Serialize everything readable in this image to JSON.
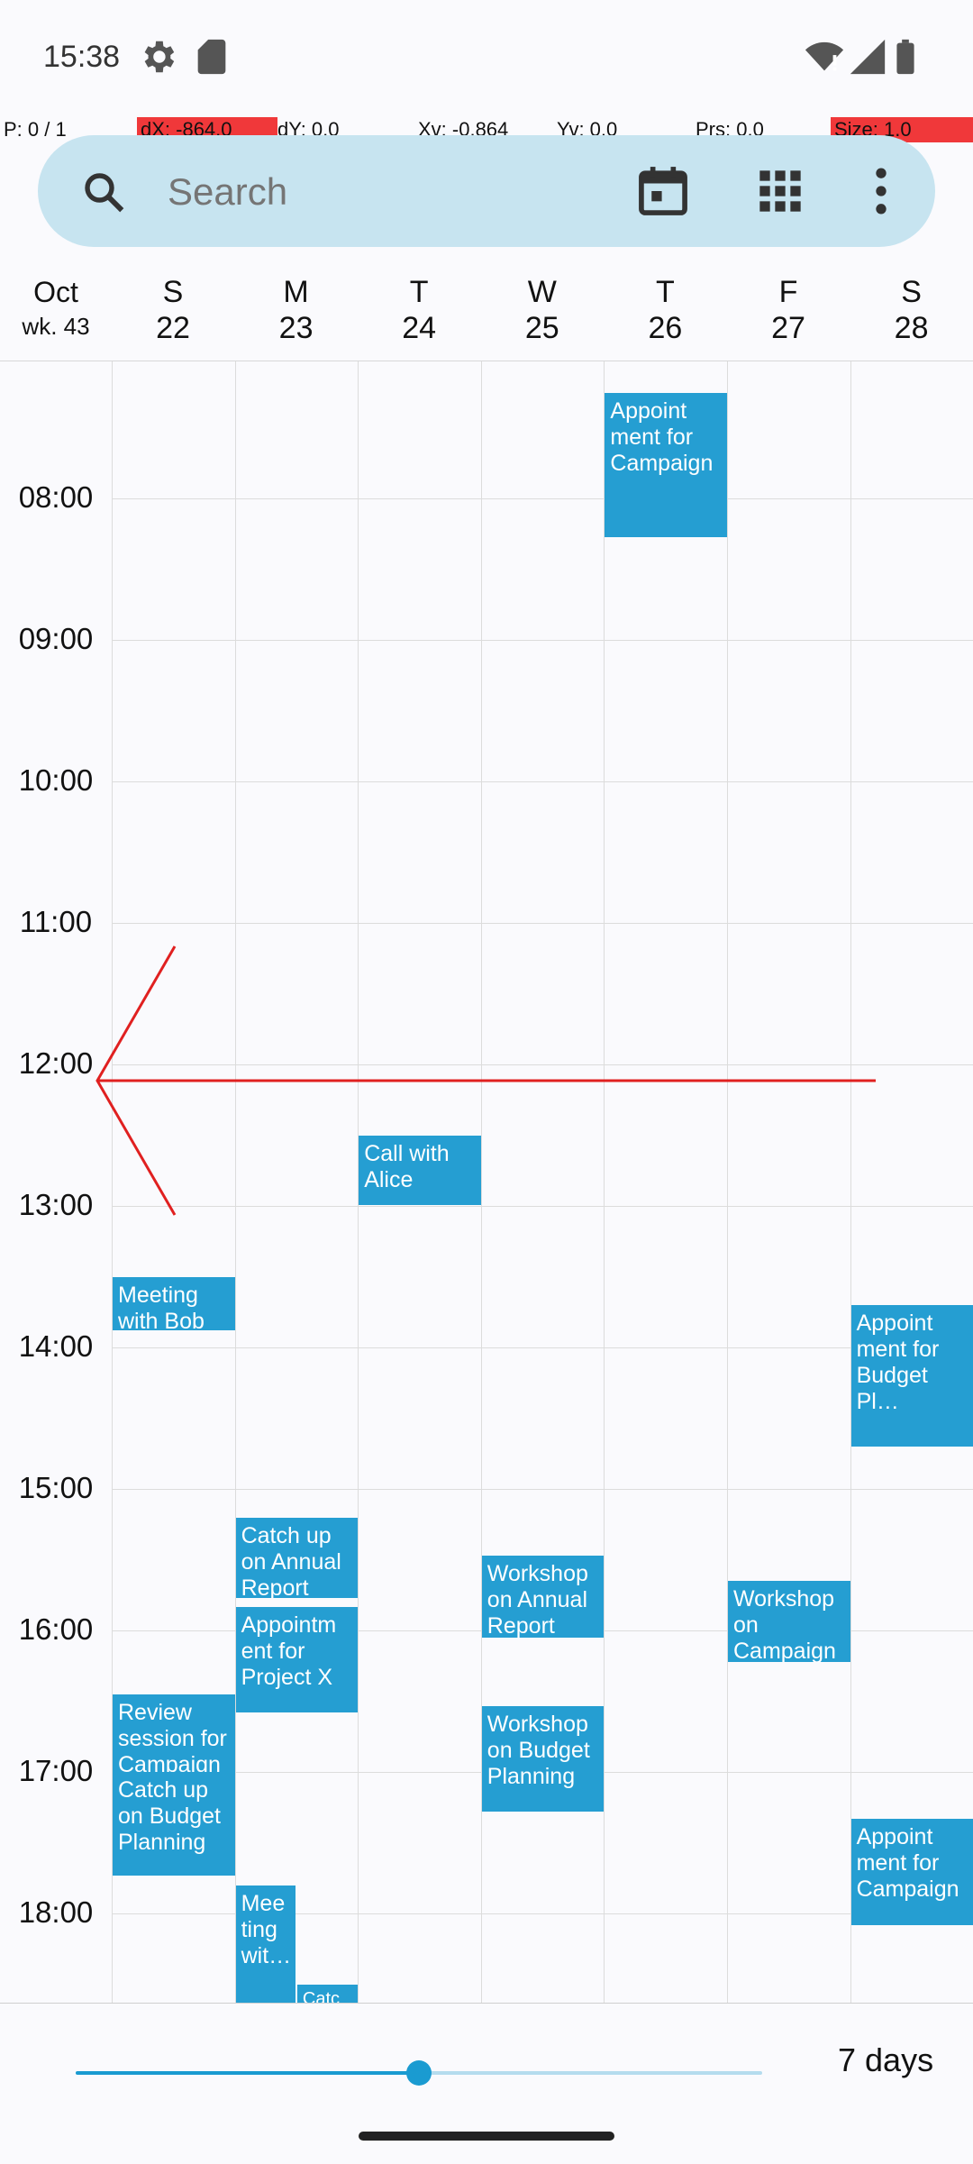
{
  "status_bar": {
    "time": "15:38"
  },
  "debug_overlay": {
    "pointer": "P: 0 / 1",
    "dx": "dX: -864.0",
    "dy": "dY: 0.0",
    "xv": "Xv: -0.864",
    "yv": "Yv: 0.0",
    "prs": "Prs: 0.0",
    "size": "Size: 1.0"
  },
  "search": {
    "placeholder": "Search",
    "value": ""
  },
  "header": {
    "month": "Oct",
    "week": "wk. 43",
    "days": [
      {
        "letter": "S",
        "num": "22"
      },
      {
        "letter": "M",
        "num": "23"
      },
      {
        "letter": "T",
        "num": "24"
      },
      {
        "letter": "W",
        "num": "25"
      },
      {
        "letter": "T",
        "num": "26"
      },
      {
        "letter": "F",
        "num": "27"
      },
      {
        "letter": "S",
        "num": "28"
      }
    ]
  },
  "hours": [
    "08:00",
    "09:00",
    "10:00",
    "11:00",
    "12:00",
    "13:00",
    "14:00",
    "15:00",
    "16:00",
    "17:00",
    "18:00"
  ],
  "events": [
    {
      "day": 4,
      "start": 7.25,
      "end": 8.27,
      "title": "Appoint ment for Campaign"
    },
    {
      "day": 2,
      "start": 12.5,
      "end": 12.99,
      "title": "Call with Alice"
    },
    {
      "day": 0,
      "start": 13.5,
      "end": 13.88,
      "title": "Meeting with Bob"
    },
    {
      "day": 6,
      "start": 13.7,
      "end": 14.7,
      "title": "Appoint ment for Budget Pl…"
    },
    {
      "day": 1,
      "start": 15.2,
      "end": 15.77,
      "title": "Catch up on Annual Report"
    },
    {
      "day": 3,
      "start": 15.47,
      "end": 16.05,
      "title": "Workshop on Annual Report"
    },
    {
      "day": 5,
      "start": 15.65,
      "end": 16.22,
      "title": "Workshop on Campaign"
    },
    {
      "day": 1,
      "start": 15.83,
      "end": 16.58,
      "title": "Appointm ent for Project X"
    },
    {
      "day": 0,
      "start": 16.45,
      "end": 17.0,
      "title": "Review session for Campaign"
    },
    {
      "day": 3,
      "start": 16.53,
      "end": 17.28,
      "title": "Workshop on Budget Planning"
    },
    {
      "day": 0,
      "start": 17.0,
      "end": 17.73,
      "title": "Catch up on Budget Planning"
    },
    {
      "day": 6,
      "start": 17.33,
      "end": 18.08,
      "title": "Appoint ment for Campaign"
    },
    {
      "day": 1,
      "start": 17.8,
      "end": 18.67,
      "title": "Mee ting wit…",
      "half": "left"
    },
    {
      "day": 1,
      "start": 18.5,
      "end": 18.67,
      "title": "Catc",
      "half": "right"
    }
  ],
  "bottom": {
    "days_label": "7 days",
    "zoom_fraction": 0.5
  },
  "colors": {
    "event": "#259ed2",
    "accent": "#1a9bd1",
    "search_bar": "#c7e4f0",
    "gesture": "#e02020"
  },
  "icons": {
    "search": "search-icon",
    "today": "calendar-today-icon",
    "apps": "grid-view-icon",
    "more": "more-vert-icon",
    "settings": "gear-icon",
    "sd": "sd-card-icon",
    "wifi": "wifi-icon",
    "signal": "signal-icon",
    "battery": "battery-icon"
  }
}
